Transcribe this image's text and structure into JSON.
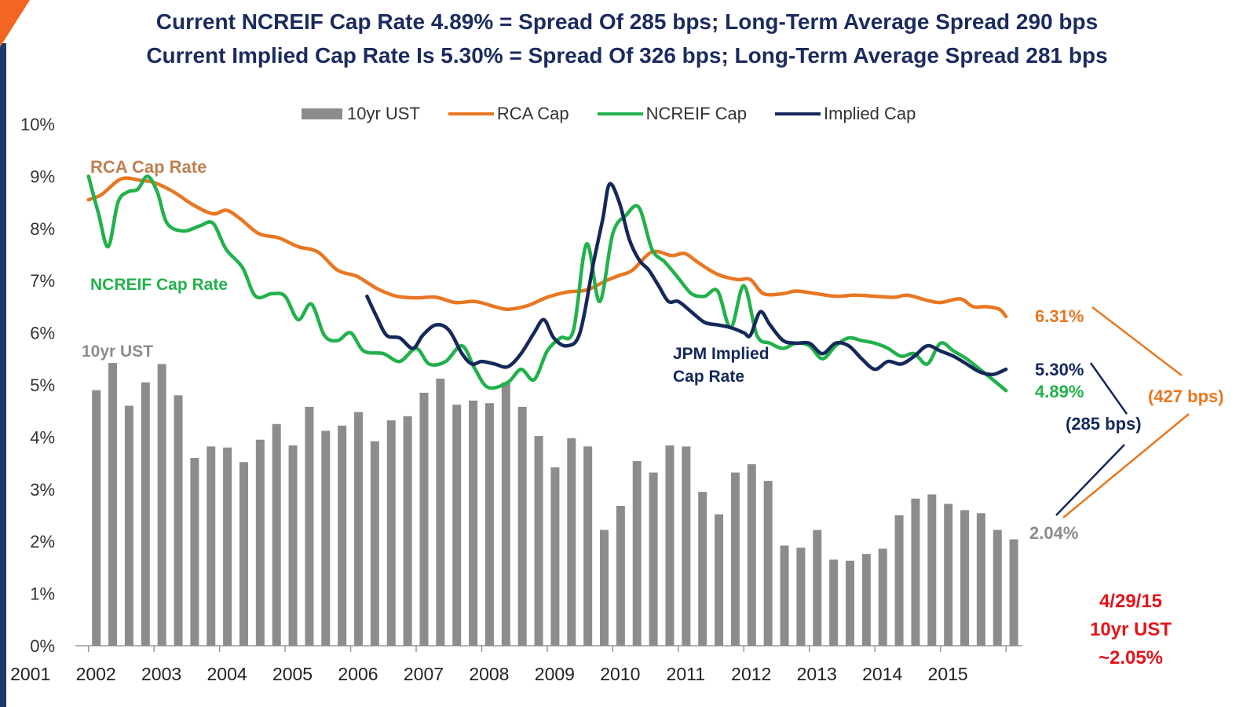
{
  "header": {
    "line1": "Current NCREIF Cap Rate 4.89% = Spread Of 285 bps; Long-Term Average Spread 290 bps",
    "line2": "Current Implied Cap Rate Is 5.30% = Spread Of 326 bps; Long-Term Average Spread 281 bps"
  },
  "legend": {
    "ust": "10yr UST",
    "rca": "RCA Cap",
    "ncreif": "NCREIF Cap",
    "implied": "Implied Cap"
  },
  "annotations": {
    "rca_label": "RCA Cap Rate",
    "ncreif_label": "NCREIF Cap Rate",
    "ust_label": "10yr UST",
    "jpm_label_1": "JPM Implied",
    "jpm_label_2": "Cap Rate",
    "rca_end": "6.31%",
    "implied_end": "5.30%",
    "ncreif_end": "4.89%",
    "ust_end": "2.04%",
    "spread_285": "(285 bps)",
    "spread_427": "(427 bps)",
    "date_line1": "4/29/15",
    "date_line2": "10yr UST",
    "date_line3": "~2.05%"
  },
  "colors": {
    "ust": "#8c8c8c",
    "rca": "#e87722",
    "ncreif": "#22b14c",
    "implied": "#14285a",
    "accent": "#f26522",
    "left_bar": "#1b3a6b",
    "stamp": "#e3151b",
    "rca_label": "#c08050"
  },
  "chart_data": {
    "type": "bar+line",
    "ylim": [
      0,
      10
    ],
    "y_ticks": [
      "0%",
      "1%",
      "2%",
      "3%",
      "4%",
      "5%",
      "6%",
      "7%",
      "8%",
      "9%",
      "10%"
    ],
    "x_ticks": [
      "2001",
      "2002",
      "2003",
      "2004",
      "2005",
      "2006",
      "2007",
      "2008",
      "2009",
      "2010",
      "2011",
      "2012",
      "2013",
      "2014",
      "2015"
    ],
    "series": [
      {
        "name": "10yr UST",
        "type": "bar",
        "x_start": 2001.0,
        "x_step": 0.25,
        "values": [
          4.9,
          5.42,
          4.6,
          5.05,
          5.4,
          4.8,
          3.6,
          3.82,
          3.8,
          3.52,
          3.95,
          4.25,
          3.84,
          4.58,
          4.12,
          4.22,
          4.48,
          3.92,
          4.32,
          4.4,
          4.85,
          5.12,
          4.62,
          4.7,
          4.65,
          5.05,
          4.58,
          4.02,
          3.42,
          3.98,
          3.82,
          2.22,
          2.68,
          3.54,
          3.32,
          3.84,
          3.82,
          2.95,
          2.52,
          3.32,
          3.48,
          3.16,
          1.92,
          1.88,
          2.22,
          1.65,
          1.63,
          1.76,
          1.86,
          2.5,
          2.82,
          2.9,
          2.72,
          2.6,
          2.54,
          2.22,
          2.04
        ]
      },
      {
        "name": "RCA Cap",
        "type": "line",
        "points": [
          [
            2001.0,
            8.55
          ],
          [
            2001.2,
            8.65
          ],
          [
            2001.5,
            8.95
          ],
          [
            2001.8,
            8.92
          ],
          [
            2002.0,
            8.88
          ],
          [
            2002.3,
            8.7
          ],
          [
            2002.6,
            8.45
          ],
          [
            2002.9,
            8.28
          ],
          [
            2003.1,
            8.35
          ],
          [
            2003.3,
            8.2
          ],
          [
            2003.6,
            7.9
          ],
          [
            2003.9,
            7.82
          ],
          [
            2004.2,
            7.65
          ],
          [
            2004.5,
            7.55
          ],
          [
            2004.8,
            7.2
          ],
          [
            2005.1,
            7.08
          ],
          [
            2005.4,
            6.85
          ],
          [
            2005.7,
            6.7
          ],
          [
            2006.0,
            6.67
          ],
          [
            2006.3,
            6.68
          ],
          [
            2006.6,
            6.58
          ],
          [
            2006.9,
            6.6
          ],
          [
            2007.2,
            6.5
          ],
          [
            2007.4,
            6.45
          ],
          [
            2007.7,
            6.52
          ],
          [
            2008.0,
            6.68
          ],
          [
            2008.3,
            6.78
          ],
          [
            2008.6,
            6.82
          ],
          [
            2008.9,
            7.0
          ],
          [
            2009.1,
            7.1
          ],
          [
            2009.3,
            7.2
          ],
          [
            2009.6,
            7.55
          ],
          [
            2009.9,
            7.48
          ],
          [
            2010.1,
            7.52
          ],
          [
            2010.3,
            7.35
          ],
          [
            2010.6,
            7.12
          ],
          [
            2010.9,
            7.02
          ],
          [
            2011.1,
            7.02
          ],
          [
            2011.3,
            6.75
          ],
          [
            2011.6,
            6.75
          ],
          [
            2011.8,
            6.8
          ],
          [
            2012.1,
            6.75
          ],
          [
            2012.4,
            6.7
          ],
          [
            2012.7,
            6.72
          ],
          [
            2013.0,
            6.7
          ],
          [
            2013.3,
            6.68
          ],
          [
            2013.5,
            6.72
          ],
          [
            2013.8,
            6.62
          ],
          [
            2014.0,
            6.58
          ],
          [
            2014.3,
            6.65
          ],
          [
            2014.5,
            6.5
          ],
          [
            2014.7,
            6.5
          ],
          [
            2014.9,
            6.45
          ],
          [
            2015.0,
            6.31
          ]
        ]
      },
      {
        "name": "NCREIF Cap",
        "type": "line",
        "points": [
          [
            2001.0,
            9.0
          ],
          [
            2001.15,
            8.3
          ],
          [
            2001.3,
            7.65
          ],
          [
            2001.45,
            8.5
          ],
          [
            2001.6,
            8.7
          ],
          [
            2001.75,
            8.75
          ],
          [
            2001.9,
            9.0
          ],
          [
            2002.05,
            8.7
          ],
          [
            2002.2,
            8.1
          ],
          [
            2002.45,
            7.95
          ],
          [
            2002.7,
            8.05
          ],
          [
            2002.9,
            8.1
          ],
          [
            2003.1,
            7.6
          ],
          [
            2003.35,
            7.25
          ],
          [
            2003.55,
            6.7
          ],
          [
            2003.8,
            6.75
          ],
          [
            2004.0,
            6.7
          ],
          [
            2004.2,
            6.25
          ],
          [
            2004.4,
            6.55
          ],
          [
            2004.6,
            5.95
          ],
          [
            2004.8,
            5.85
          ],
          [
            2005.0,
            6.0
          ],
          [
            2005.2,
            5.65
          ],
          [
            2005.5,
            5.6
          ],
          [
            2005.75,
            5.45
          ],
          [
            2006.0,
            5.7
          ],
          [
            2006.2,
            5.4
          ],
          [
            2006.45,
            5.45
          ],
          [
            2006.7,
            5.75
          ],
          [
            2006.9,
            5.3
          ],
          [
            2007.1,
            4.95
          ],
          [
            2007.4,
            5.05
          ],
          [
            2007.6,
            5.3
          ],
          [
            2007.8,
            5.1
          ],
          [
            2008.0,
            5.65
          ],
          [
            2008.2,
            5.9
          ],
          [
            2008.4,
            6.05
          ],
          [
            2008.6,
            7.7
          ],
          [
            2008.8,
            6.6
          ],
          [
            2009.0,
            7.9
          ],
          [
            2009.2,
            8.25
          ],
          [
            2009.4,
            8.4
          ],
          [
            2009.6,
            7.6
          ],
          [
            2009.8,
            7.35
          ],
          [
            2010.0,
            7.05
          ],
          [
            2010.2,
            6.75
          ],
          [
            2010.4,
            6.7
          ],
          [
            2010.6,
            6.8
          ],
          [
            2010.8,
            6.1
          ],
          [
            2011.0,
            6.9
          ],
          [
            2011.2,
            5.95
          ],
          [
            2011.4,
            5.8
          ],
          [
            2011.6,
            5.7
          ],
          [
            2011.8,
            5.8
          ],
          [
            2012.0,
            5.75
          ],
          [
            2012.2,
            5.5
          ],
          [
            2012.4,
            5.75
          ],
          [
            2012.6,
            5.9
          ],
          [
            2012.8,
            5.85
          ],
          [
            2013.0,
            5.8
          ],
          [
            2013.2,
            5.7
          ],
          [
            2013.4,
            5.55
          ],
          [
            2013.6,
            5.6
          ],
          [
            2013.8,
            5.4
          ],
          [
            2014.0,
            5.8
          ],
          [
            2014.2,
            5.65
          ],
          [
            2014.4,
            5.5
          ],
          [
            2014.6,
            5.3
          ],
          [
            2014.8,
            5.1
          ],
          [
            2015.0,
            4.89
          ]
        ]
      },
      {
        "name": "Implied Cap",
        "type": "line",
        "points": [
          [
            2005.25,
            6.7
          ],
          [
            2005.4,
            6.3
          ],
          [
            2005.55,
            5.95
          ],
          [
            2005.75,
            5.9
          ],
          [
            2005.95,
            5.7
          ],
          [
            2006.1,
            5.95
          ],
          [
            2006.3,
            6.15
          ],
          [
            2006.5,
            6.05
          ],
          [
            2006.7,
            5.6
          ],
          [
            2006.85,
            5.4
          ],
          [
            2007.0,
            5.45
          ],
          [
            2007.2,
            5.4
          ],
          [
            2007.4,
            5.35
          ],
          [
            2007.6,
            5.6
          ],
          [
            2007.8,
            6.0
          ],
          [
            2007.95,
            6.25
          ],
          [
            2008.1,
            5.9
          ],
          [
            2008.3,
            5.75
          ],
          [
            2008.5,
            6.0
          ],
          [
            2008.7,
            7.3
          ],
          [
            2008.85,
            8.2
          ],
          [
            2008.95,
            8.85
          ],
          [
            2009.1,
            8.5
          ],
          [
            2009.25,
            7.8
          ],
          [
            2009.4,
            7.4
          ],
          [
            2009.55,
            7.2
          ],
          [
            2009.7,
            6.9
          ],
          [
            2009.85,
            6.6
          ],
          [
            2010.0,
            6.6
          ],
          [
            2010.2,
            6.4
          ],
          [
            2010.4,
            6.2
          ],
          [
            2010.6,
            6.15
          ],
          [
            2010.8,
            6.1
          ],
          [
            2011.0,
            6.0
          ],
          [
            2011.1,
            5.95
          ],
          [
            2011.25,
            6.4
          ],
          [
            2011.4,
            6.15
          ],
          [
            2011.6,
            5.85
          ],
          [
            2011.8,
            5.8
          ],
          [
            2012.0,
            5.8
          ],
          [
            2012.2,
            5.6
          ],
          [
            2012.4,
            5.8
          ],
          [
            2012.6,
            5.75
          ],
          [
            2012.8,
            5.5
          ],
          [
            2013.0,
            5.3
          ],
          [
            2013.2,
            5.45
          ],
          [
            2013.4,
            5.4
          ],
          [
            2013.6,
            5.55
          ],
          [
            2013.8,
            5.75
          ],
          [
            2014.0,
            5.65
          ],
          [
            2014.2,
            5.55
          ],
          [
            2014.4,
            5.4
          ],
          [
            2014.6,
            5.25
          ],
          [
            2014.8,
            5.2
          ],
          [
            2015.0,
            5.3
          ]
        ]
      }
    ]
  }
}
